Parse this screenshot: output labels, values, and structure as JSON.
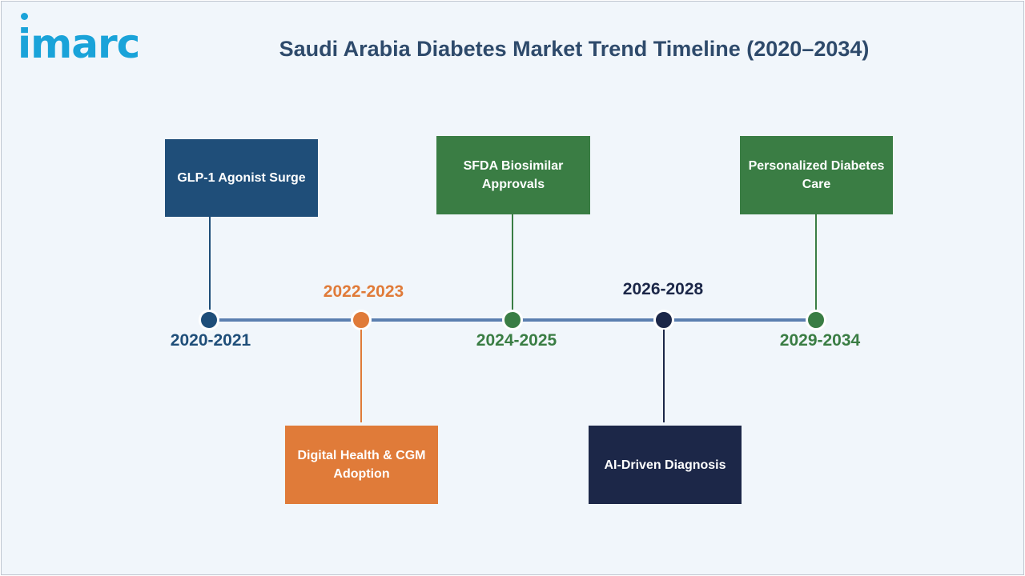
{
  "header": {
    "logo_text": "imarc",
    "title": "Saudi Arabia Diabetes Market Trend Timeline (2020–2034)"
  },
  "colors": {
    "navy_blue": "#1f4e79",
    "orange": "#e07b39",
    "green": "#3a7d44",
    "dark_navy": "#1c2748",
    "axis": "#5b7fb0"
  },
  "timeline": {
    "milestones": [
      {
        "period": "2020-2021",
        "event": "GLP-1 Agonist Surge",
        "color": "#1f4e79"
      },
      {
        "period": "2022-2023",
        "event": "Digital Health & CGM Adoption",
        "color": "#e07b39"
      },
      {
        "period": "2024-2025",
        "event": "SFDA Biosimilar Approvals",
        "color": "#3a7d44"
      },
      {
        "period": "2026-2028",
        "event": "AI-Driven Diagnosis",
        "color": "#1c2748"
      },
      {
        "period": "2029-2034",
        "event": "Personalized Diabetes Care",
        "color": "#3a7d44"
      }
    ]
  }
}
